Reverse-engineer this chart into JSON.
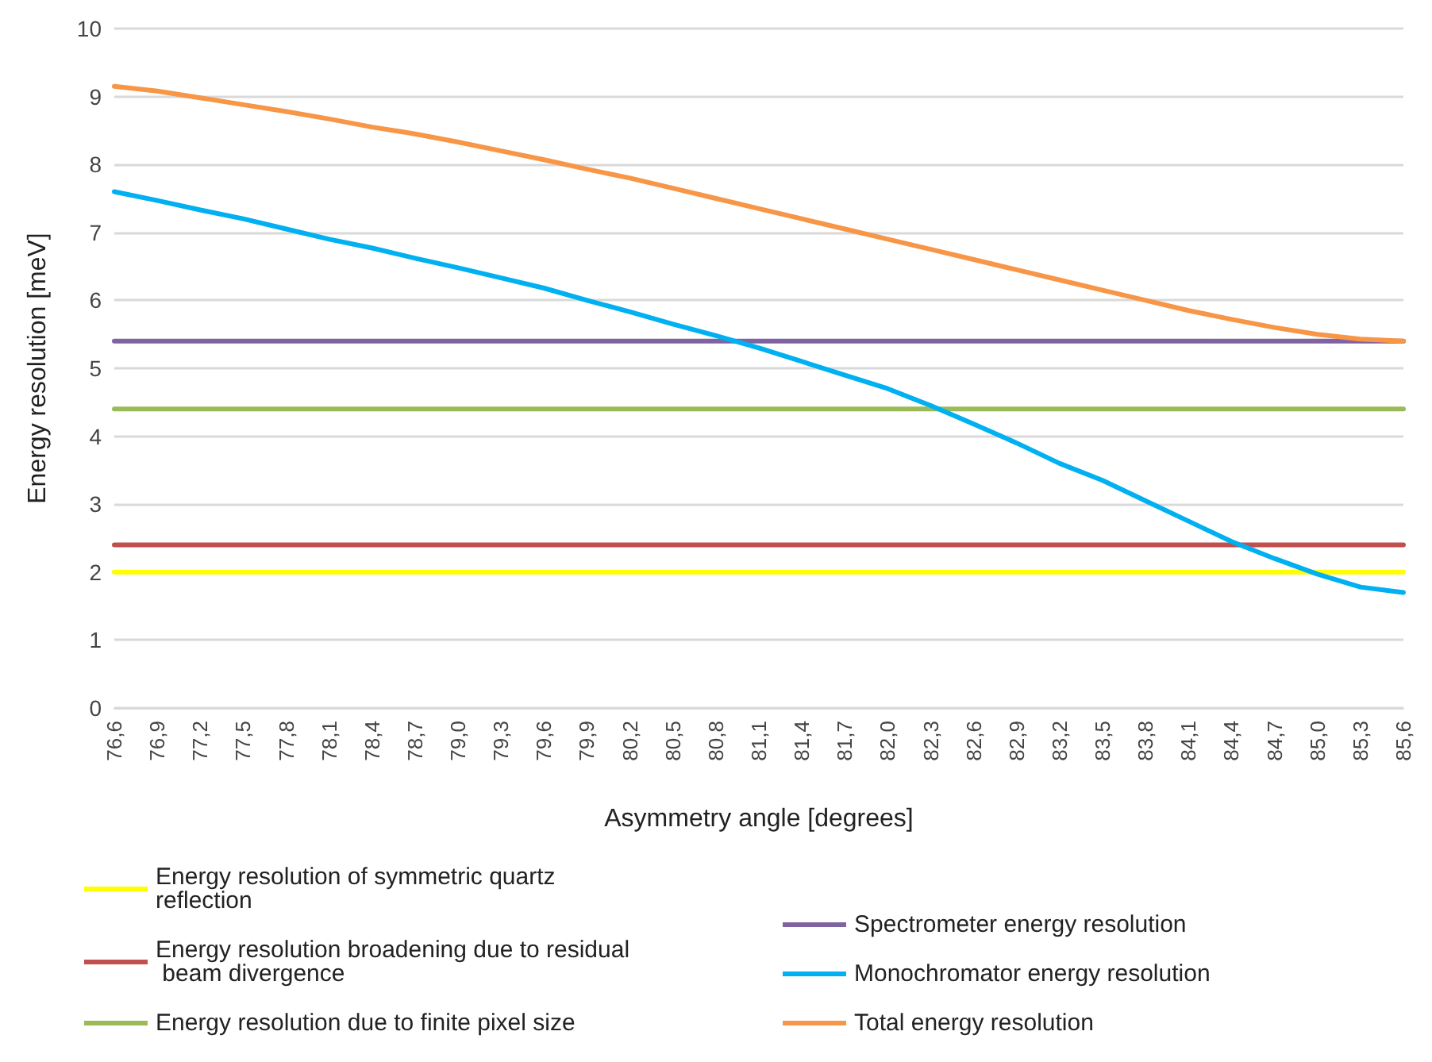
{
  "chart_data": {
    "type": "line",
    "xlabel": "Asymmetry angle [degrees]",
    "ylabel": "Energy resolution [meV]",
    "categories": [
      "76,6",
      "76,9",
      "77,2",
      "77,5",
      "77,8",
      "78,1",
      "78,4",
      "78,7",
      "79,0",
      "79,3",
      "79,6",
      "79,9",
      "80,2",
      "80,5",
      "80,8",
      "81,1",
      "81,4",
      "81,7",
      "82,0",
      "82,3",
      "82,6",
      "82,9",
      "83,2",
      "83,5",
      "83,8",
      "84,1",
      "84,4",
      "84,7",
      "85,0",
      "85,3",
      "85,6"
    ],
    "series": [
      {
        "name": "Energy resolution of symmetric quartz reflection",
        "color": "#ffff00",
        "values": [
          2,
          2,
          2,
          2,
          2,
          2,
          2,
          2,
          2,
          2,
          2,
          2,
          2,
          2,
          2,
          2,
          2,
          2,
          2,
          2,
          2,
          2,
          2,
          2,
          2,
          2,
          2,
          2,
          2,
          2,
          2
        ]
      },
      {
        "name": "Energy resolution broadening due to residual beam divergence",
        "color": "#c0504d",
        "values": [
          2.4,
          2.4,
          2.4,
          2.4,
          2.4,
          2.4,
          2.4,
          2.4,
          2.4,
          2.4,
          2.4,
          2.4,
          2.4,
          2.4,
          2.4,
          2.4,
          2.4,
          2.4,
          2.4,
          2.4,
          2.4,
          2.4,
          2.4,
          2.4,
          2.4,
          2.4,
          2.4,
          2.4,
          2.4,
          2.4,
          2.4
        ]
      },
      {
        "name": "Energy resolution due to finite pixel size",
        "color": "#9bbb59",
        "values": [
          4.4,
          4.4,
          4.4,
          4.4,
          4.4,
          4.4,
          4.4,
          4.4,
          4.4,
          4.4,
          4.4,
          4.4,
          4.4,
          4.4,
          4.4,
          4.4,
          4.4,
          4.4,
          4.4,
          4.4,
          4.4,
          4.4,
          4.4,
          4.4,
          4.4,
          4.4,
          4.4,
          4.4,
          4.4,
          4.4,
          4.4
        ]
      },
      {
        "name": "Spectrometer energy resolution",
        "color": "#8064a2",
        "values": [
          5.4,
          5.4,
          5.4,
          5.4,
          5.4,
          5.4,
          5.4,
          5.4,
          5.4,
          5.4,
          5.4,
          5.4,
          5.4,
          5.4,
          5.4,
          5.4,
          5.4,
          5.4,
          5.4,
          5.4,
          5.4,
          5.4,
          5.4,
          5.4,
          5.4,
          5.4,
          5.4,
          5.4,
          5.4,
          5.4,
          5.4
        ]
      },
      {
        "name": "Monochromator energy resolution",
        "color": "#00b0f0",
        "values": [
          7.6,
          7.47,
          7.33,
          7.2,
          7.05,
          6.9,
          6.77,
          6.62,
          6.48,
          6.33,
          6.18,
          6.0,
          5.83,
          5.65,
          5.48,
          5.3,
          5.1,
          4.9,
          4.7,
          4.45,
          4.18,
          3.9,
          3.6,
          3.35,
          3.05,
          2.75,
          2.45,
          2.2,
          1.97,
          1.78,
          1.7
        ]
      },
      {
        "name": "Total energy resolution",
        "color": "#f79646",
        "values": [
          9.15,
          9.08,
          8.98,
          8.88,
          8.78,
          8.67,
          8.55,
          8.45,
          8.33,
          8.2,
          8.07,
          7.93,
          7.8,
          7.65,
          7.5,
          7.35,
          7.2,
          7.05,
          6.9,
          6.75,
          6.6,
          6.45,
          6.3,
          6.15,
          6.0,
          5.85,
          5.72,
          5.6,
          5.5,
          5.43,
          5.4
        ]
      }
    ],
    "ylim": [
      0,
      10
    ],
    "yticks": [
      0,
      1,
      2,
      3,
      4,
      5,
      6,
      7,
      8,
      9,
      10
    ],
    "grid": "y",
    "legend": "bottom",
    "marker": "none",
    "line_style": "solid"
  }
}
